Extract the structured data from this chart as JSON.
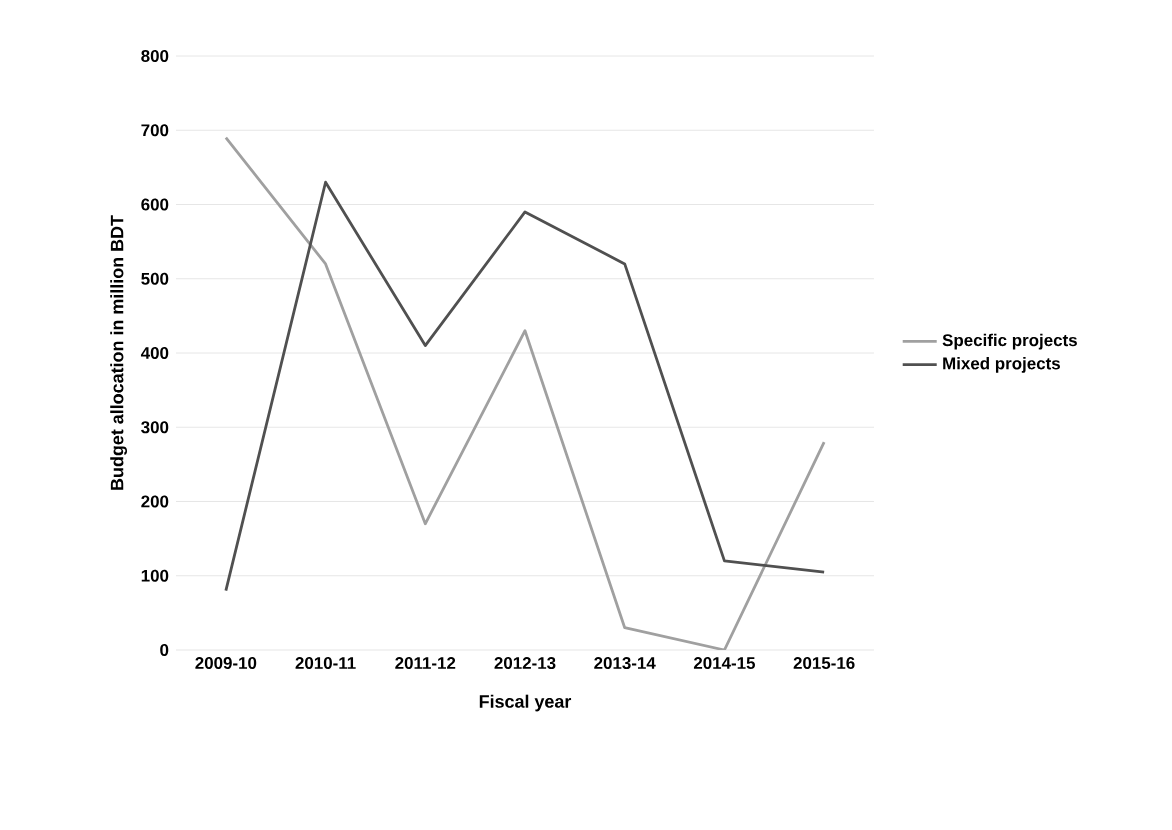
{
  "chart_data": {
    "type": "line",
    "xlabel": "Fiscal year",
    "ylabel": "Budget allocation in million BDT",
    "categories": [
      "2009-10",
      "2010-11",
      "2011-12",
      "2012-13",
      "2013-14",
      "2014-15",
      "2015-16"
    ],
    "series": [
      {
        "name": "Specific projects",
        "color": "#a0a0a0",
        "values": [
          690,
          520,
          170,
          430,
          30,
          0,
          280
        ]
      },
      {
        "name": "Mixed projects",
        "color": "#505050",
        "values": [
          80,
          630,
          410,
          590,
          520,
          120,
          105
        ]
      }
    ],
    "ylim": [
      0,
      800
    ],
    "yticks": [
      0,
      100,
      200,
      300,
      400,
      500,
      600,
      700,
      800
    ],
    "grid": "y",
    "legend": "right"
  }
}
